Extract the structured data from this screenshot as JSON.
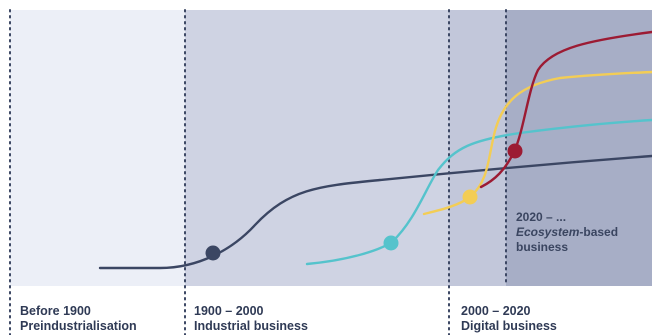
{
  "eras": [
    {
      "year": "Before 1900",
      "name": "Preindustrialisation"
    },
    {
      "year": "1900 – 2000",
      "name": "Industrial business"
    },
    {
      "year": "2000 – 2020",
      "name": "Digital business"
    },
    {
      "year": "2020 – ...",
      "name_emphasis": "Ecosystem",
      "name_rest": "-based",
      "name_line2": "business"
    }
  ],
  "colors": {
    "era_1_bg": "#eceff7",
    "era_2_bg": "#cfd3e3",
    "era_3_bg": "#c2c7da",
    "era_4_bg": "#a7aec6",
    "industrial_curve": "#3b4663",
    "digital_curve": "#55c3cc",
    "yellow_curve": "#f3cd55",
    "ecosystem_curve": "#9c1b33",
    "divider": "#3b4663"
  }
}
